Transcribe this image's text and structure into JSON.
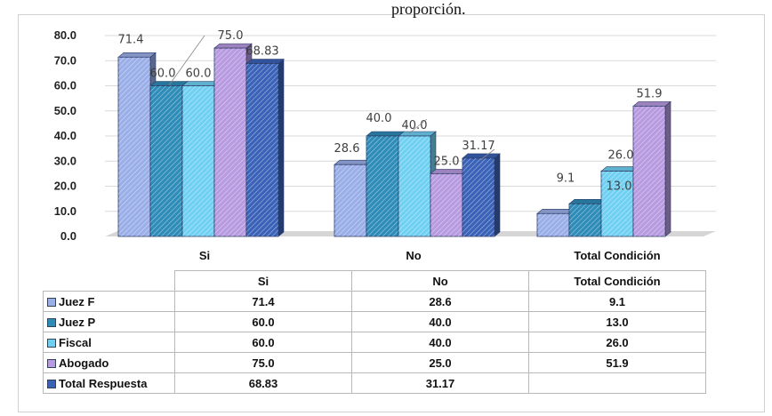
{
  "header_fragment": "proporción.",
  "chart_data": {
    "type": "bar",
    "categories": [
      "Si",
      "No",
      "Total Condición"
    ],
    "ylim": [
      0,
      80
    ],
    "yticks": [
      "0.0",
      "10.0",
      "20.0",
      "30.0",
      "40.0",
      "50.0",
      "60.0",
      "70.0",
      "80.0"
    ],
    "series": [
      {
        "name": "Juez F",
        "values": [
          71.4,
          28.6,
          9.1
        ],
        "labels": [
          "71.4",
          "28.6",
          "9.1"
        ],
        "color": "#9aaee8"
      },
      {
        "name": "Juez P",
        "values": [
          60.0,
          40.0,
          13.0
        ],
        "labels": [
          "60.0",
          "40.0",
          "13.0"
        ],
        "color": "#2e8cb8"
      },
      {
        "name": "Fiscal",
        "values": [
          60.0,
          40.0,
          26.0
        ],
        "labels": [
          "60.0",
          "40.0",
          "26.0"
        ],
        "color": "#6fd0f2"
      },
      {
        "name": "Abogado",
        "values": [
          75.0,
          25.0,
          51.9
        ],
        "labels": [
          "75.0",
          "25.0",
          "51.9"
        ],
        "color": "#b79ae0"
      },
      {
        "name": "Total Respuesta",
        "values": [
          68.83,
          31.17,
          null
        ],
        "labels": [
          "68.83",
          "31.17",
          ""
        ],
        "color": "#3a62b8"
      }
    ],
    "grid": true,
    "legend": "data-table"
  },
  "table": {
    "headers": [
      "Si",
      "No",
      "Total Condición"
    ],
    "rows": [
      {
        "label": "Juez F",
        "cells": [
          "71.4",
          "28.6",
          "9.1"
        ]
      },
      {
        "label": "Juez P",
        "cells": [
          "60.0",
          "40.0",
          "13.0"
        ]
      },
      {
        "label": "Fiscal",
        "cells": [
          "60.0",
          "40.0",
          "26.0"
        ]
      },
      {
        "label": "Abogado",
        "cells": [
          "75.0",
          "25.0",
          "51.9"
        ]
      },
      {
        "label": "Total Respuesta",
        "cells": [
          "68.83",
          "31.17",
          ""
        ]
      }
    ]
  }
}
